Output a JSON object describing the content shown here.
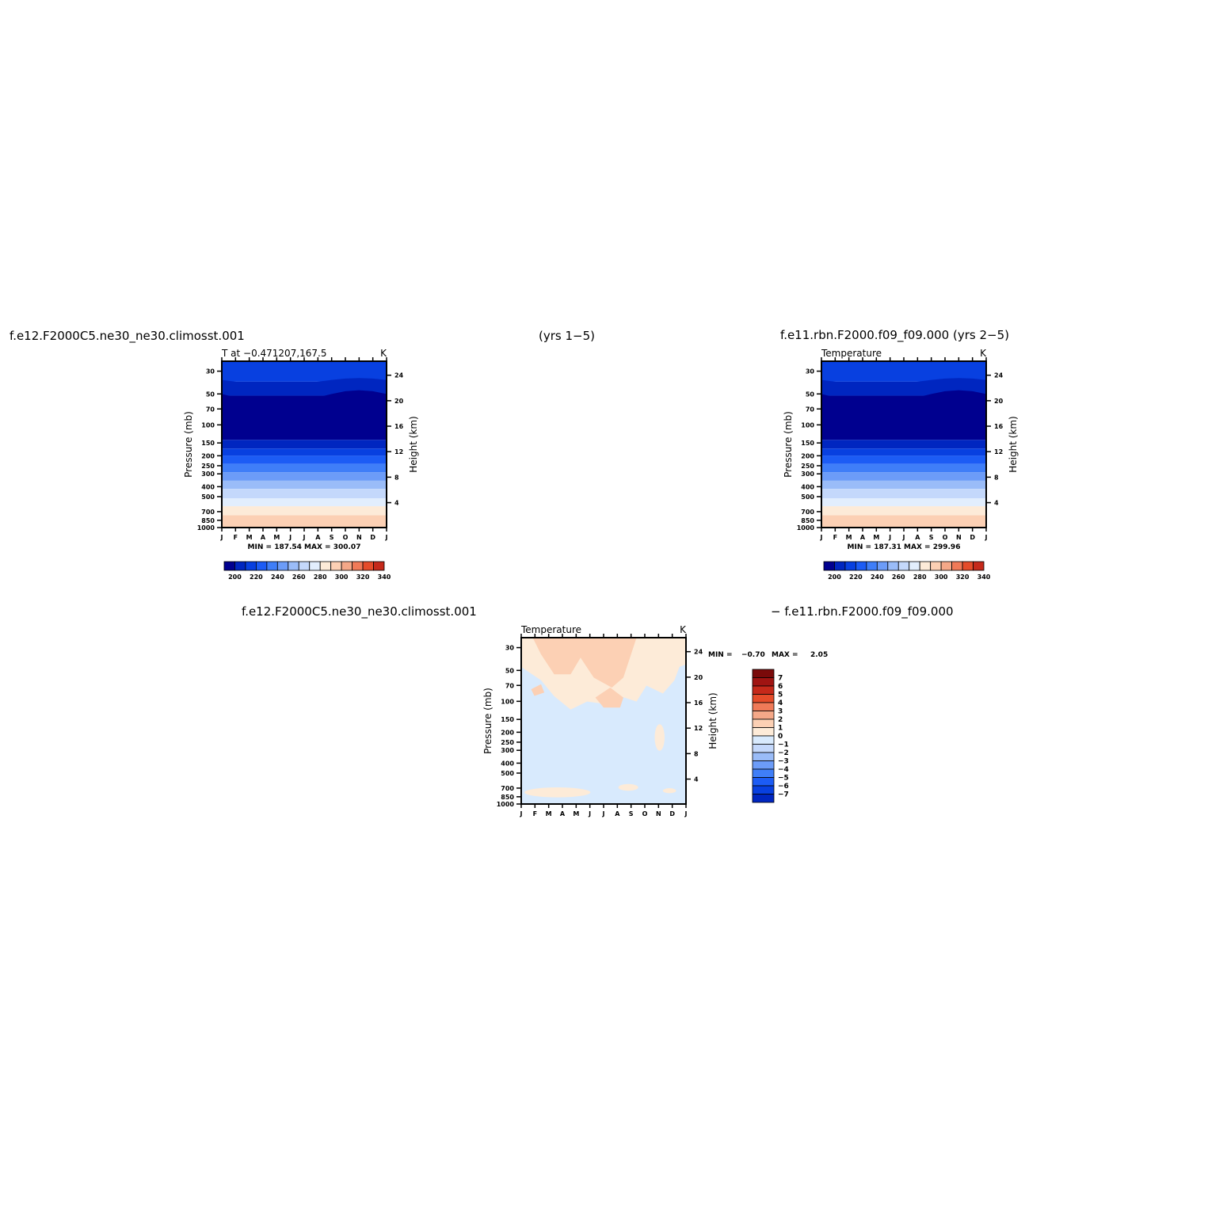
{
  "headers": {
    "top_left": "f.e12.F2000C5.ne30_ne30.climosst.001",
    "top_center": "(yrs 1−5)",
    "top_right": "f.e11.rbn.F2000.f09_f09.000 (yrs 2−5)",
    "bottom_left": "f.e12.F2000C5.ne30_ne30.climosst.001",
    "bottom_right": "− f.e11.rbn.F2000.f09_f09.000"
  },
  "colors": {
    "temp_levels": [
      "#00008f",
      "#0026c0",
      "#0840e0",
      "#1c5cf5",
      "#3f7ef8",
      "#6c9cf8",
      "#9abcf8",
      "#c4d8fb",
      "#e2eefd",
      "#fdebd8",
      "#fcd0b4",
      "#f5a888",
      "#f07a58",
      "#e54c2a",
      "#c5291a",
      "#a01412",
      "#7a0a0a"
    ],
    "diff_levels": [
      "#00008f",
      "#0026c0",
      "#0840e0",
      "#1c5cf5",
      "#3f7ef8",
      "#6c9cf8",
      "#9abcf8",
      "#c4d8fb",
      "#d8eafd",
      "#fdebd8",
      "#fcd0b4",
      "#f5a888",
      "#f07a58",
      "#e54c2a",
      "#c5291a",
      "#a01412",
      "#7a0a0a"
    ]
  },
  "chart_data": [
    {
      "type": "heatmap",
      "title_left": "T at −0.471207,167.5",
      "units": "K",
      "ylabel": "Pressure (mb)",
      "ylabel_right": "Height (km)",
      "x_ticks": [
        "J",
        "F",
        "M",
        "A",
        "M",
        "J",
        "J",
        "A",
        "S",
        "O",
        "N",
        "D",
        "J"
      ],
      "y_ticks": [
        "30",
        "50",
        "70",
        "100",
        "150",
        "200",
        "250",
        "300",
        "400",
        "500",
        "700",
        "850",
        "1000"
      ],
      "y_ticks_right": [
        "24",
        "20",
        "16",
        "12",
        "8",
        "4"
      ],
      "stats": "MIN = 187.54  MAX = 300.07",
      "colorbar_labels": [
        "200",
        "220",
        "240",
        "260",
        "280",
        "300",
        "320",
        "340"
      ],
      "min": 187.54,
      "max": 300.07
    },
    {
      "type": "heatmap",
      "title_left": "Temperature",
      "units": "K",
      "ylabel": "Pressure (mb)",
      "ylabel_right": "Height (km)",
      "x_ticks": [
        "J",
        "F",
        "M",
        "A",
        "M",
        "J",
        "J",
        "A",
        "S",
        "O",
        "N",
        "D",
        "J"
      ],
      "y_ticks": [
        "30",
        "50",
        "70",
        "100",
        "150",
        "200",
        "250",
        "300",
        "400",
        "500",
        "700",
        "850",
        "1000"
      ],
      "y_ticks_right": [
        "24",
        "20",
        "16",
        "12",
        "8",
        "4"
      ],
      "stats": "MIN = 187.31  MAX = 299.96",
      "colorbar_labels": [
        "200",
        "220",
        "240",
        "260",
        "280",
        "300",
        "320",
        "340"
      ],
      "min": 187.31,
      "max": 299.96
    },
    {
      "type": "heatmap",
      "title_left": "Temperature",
      "units": "K",
      "ylabel": "Pressure (mb)",
      "ylabel_right": "Height (km)",
      "x_ticks": [
        "J",
        "F",
        "M",
        "A",
        "M",
        "J",
        "J",
        "A",
        "S",
        "O",
        "N",
        "D",
        "J"
      ],
      "y_ticks": [
        "30",
        "50",
        "70",
        "100",
        "150",
        "200",
        "250",
        "300",
        "400",
        "500",
        "700",
        "850",
        "1000"
      ],
      "y_ticks_right": [
        "24",
        "20",
        "16",
        "12",
        "8",
        "4"
      ],
      "stats_min_label": "MIN =",
      "stats_min": "−0.70",
      "stats_max_label": "MAX =",
      "stats_max": "2.05",
      "colorbar_labels": [
        "7",
        "6",
        "5",
        "4",
        "3",
        "2",
        "1",
        "0",
        "−1",
        "−2",
        "−3",
        "−4",
        "−5",
        "−6",
        "−7"
      ],
      "min": -0.7,
      "max": 2.05
    }
  ]
}
